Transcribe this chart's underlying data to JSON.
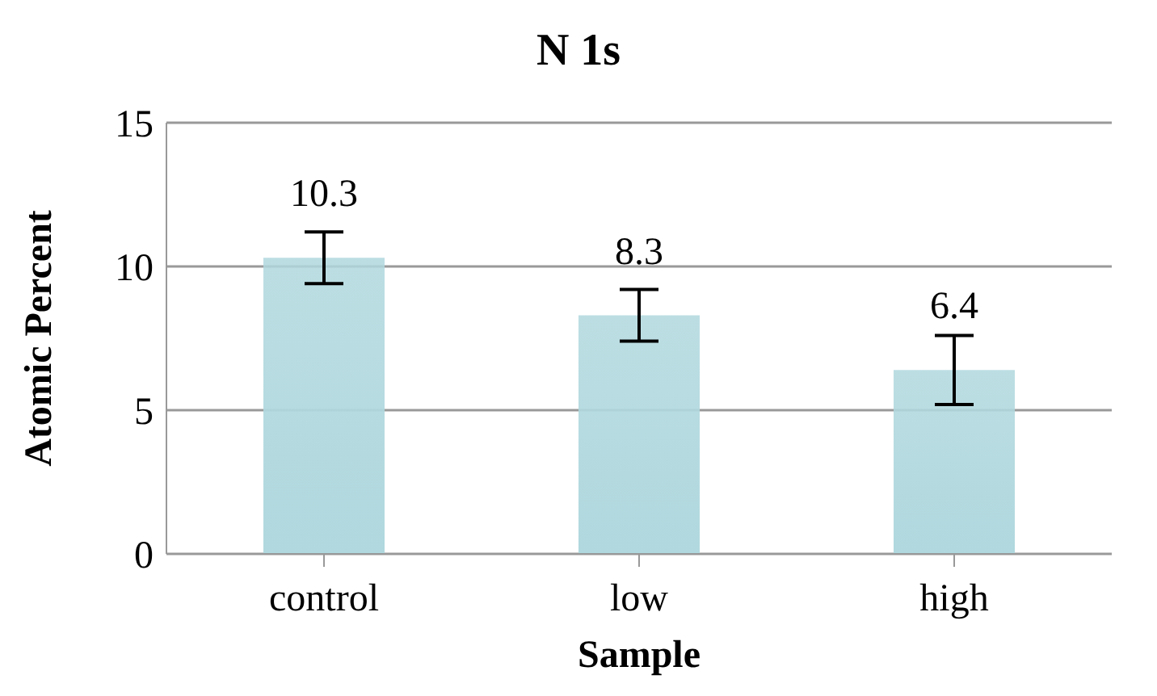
{
  "chart_data": {
    "type": "bar",
    "title": "N 1s",
    "xlabel": "Sample",
    "ylabel": "Atomic Percent",
    "categories": [
      "control",
      "low",
      "high"
    ],
    "values": [
      10.3,
      8.3,
      6.4
    ],
    "errors": [
      0.9,
      0.9,
      1.2
    ],
    "color": "#b0d8de",
    "ylim": [
      0,
      15
    ],
    "yticks": [
      0,
      5,
      10,
      15
    ],
    "grid": "y",
    "data_labels": true
  }
}
